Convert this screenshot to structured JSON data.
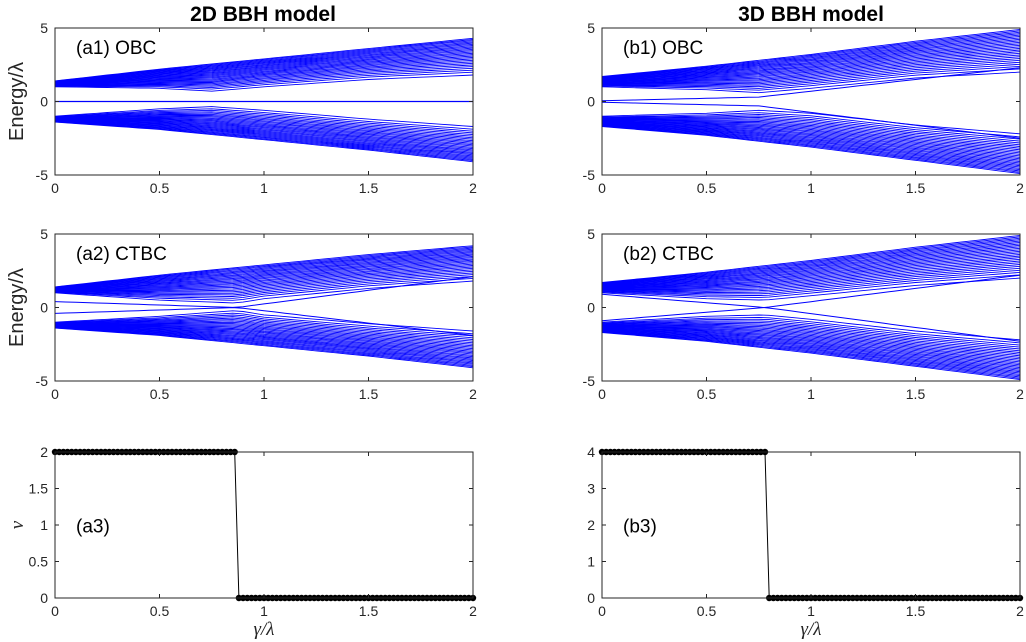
{
  "figure": {
    "column_titles": [
      "2D BBH model",
      "3D BBH model"
    ]
  },
  "chart_data": [
    {
      "id": "a1",
      "type": "line",
      "title": "(a1) OBC",
      "xlabel": "",
      "ylabel": "Energy/λ",
      "xlim": [
        0,
        2
      ],
      "ylim": [
        -5,
        5
      ],
      "xticks": [
        0,
        0.5,
        1,
        1.5,
        2
      ],
      "xtick_labels": [
        "0",
        "0.5",
        "1",
        "1.5",
        "2"
      ],
      "yticks": [
        -5,
        0,
        5
      ],
      "ytick_labels": [
        "-5",
        "0",
        "5"
      ],
      "line_color": "#0000ff",
      "bands": {
        "upper": {
          "inner_edge": [
            [
              0,
              1.0
            ],
            [
              0.5,
              0.9
            ],
            [
              0.75,
              0.7
            ],
            [
              1,
              1.0
            ],
            [
              1.5,
              1.5
            ],
            [
              2,
              1.8
            ]
          ],
          "outer_edge": [
            [
              0,
              1.4
            ],
            [
              0.5,
              2.2
            ],
            [
              1,
              2.9
            ],
            [
              1.5,
              3.6
            ],
            [
              2,
              4.3
            ]
          ]
        },
        "lower": {
          "inner_edge": [
            [
              0,
              -1.0
            ],
            [
              0.5,
              -0.5
            ],
            [
              0.75,
              -0.35
            ],
            [
              1,
              -0.6
            ],
            [
              1.5,
              -1.2
            ],
            [
              2,
              -1.7
            ]
          ],
          "outer_edge": [
            [
              0,
              -1.4
            ],
            [
              0.5,
              -1.9
            ],
            [
              1,
              -2.6
            ],
            [
              1.5,
              -3.3
            ],
            [
              2,
              -4.1
            ]
          ]
        }
      },
      "zero_modes": {
        "x": [
          0,
          2
        ],
        "y": [
          0,
          0
        ]
      }
    },
    {
      "id": "b1",
      "type": "line",
      "title": "(b1) OBC",
      "xlabel": "",
      "ylabel": "",
      "xlim": [
        0,
        2
      ],
      "ylim": [
        -5,
        5
      ],
      "xticks": [
        0,
        0.5,
        1,
        1.5,
        2
      ],
      "xtick_labels": [
        "0",
        "0.5",
        "1",
        "1.5",
        "2"
      ],
      "yticks": [
        -5,
        0,
        5
      ],
      "ytick_labels": [
        "-5",
        "0",
        "5"
      ],
      "line_color": "#0000ff",
      "bands": {
        "upper": {
          "inner_edge": [
            [
              0,
              1.0
            ],
            [
              0.5,
              0.8
            ],
            [
              0.75,
              0.6
            ],
            [
              1,
              0.9
            ],
            [
              1.5,
              1.6
            ],
            [
              2,
              2.0
            ]
          ],
          "outer_edge": [
            [
              0,
              1.7
            ],
            [
              0.5,
              2.4
            ],
            [
              1,
              3.2
            ],
            [
              1.5,
              4.1
            ],
            [
              2,
              4.9
            ]
          ]
        },
        "lower": {
          "inner_edge": [
            [
              0,
              -1.0
            ],
            [
              0.5,
              -0.8
            ],
            [
              0.75,
              -0.6
            ],
            [
              1,
              -0.8
            ],
            [
              1.5,
              -1.6
            ],
            [
              2,
              -2.2
            ]
          ],
          "outer_edge": [
            [
              0,
              -1.7
            ],
            [
              0.5,
              -2.3
            ],
            [
              1,
              -3.1
            ],
            [
              1.5,
              -4.0
            ],
            [
              2,
              -4.9
            ]
          ]
        }
      },
      "crossing_modes": [
        {
          "x": [
            0,
            0.75,
            2
          ],
          "y": [
            0.05,
            0.3,
            2.3
          ]
        },
        {
          "x": [
            0,
            0.75,
            2
          ],
          "y": [
            -0.05,
            -0.3,
            -2.5
          ]
        }
      ]
    },
    {
      "id": "a2",
      "type": "line",
      "title": "(a2) CTBC",
      "xlabel": "",
      "ylabel": "Energy/λ",
      "xlim": [
        0,
        2
      ],
      "ylim": [
        -5,
        5
      ],
      "xticks": [
        0,
        0.5,
        1,
        1.5,
        2
      ],
      "xtick_labels": [
        "0",
        "0.5",
        "1",
        "1.5",
        "2"
      ],
      "yticks": [
        -5,
        0,
        5
      ],
      "ytick_labels": [
        "-5",
        "0",
        "5"
      ],
      "line_color": "#0000ff",
      "bands": {
        "upper": {
          "inner_edge": [
            [
              0,
              1.0
            ],
            [
              0.5,
              0.5
            ],
            [
              0.87,
              0.3
            ],
            [
              1,
              0.6
            ],
            [
              1.5,
              1.3
            ],
            [
              2,
              1.8
            ]
          ],
          "outer_edge": [
            [
              0,
              1.4
            ],
            [
              0.5,
              2.2
            ],
            [
              1,
              2.9
            ],
            [
              1.5,
              3.6
            ],
            [
              2,
              4.2
            ]
          ]
        },
        "lower": {
          "inner_edge": [
            [
              0,
              -1.0
            ],
            [
              0.5,
              -0.6
            ],
            [
              0.87,
              -0.2
            ],
            [
              1,
              -0.5
            ],
            [
              1.5,
              -1.1
            ],
            [
              2,
              -1.6
            ]
          ],
          "outer_edge": [
            [
              0,
              -1.4
            ],
            [
              0.5,
              -1.9
            ],
            [
              1,
              -2.6
            ],
            [
              1.5,
              -3.3
            ],
            [
              2,
              -4.1
            ]
          ]
        }
      },
      "crossing_modes": [
        {
          "x": [
            0,
            0.87,
            2
          ],
          "y": [
            0.4,
            0,
            2.1
          ]
        },
        {
          "x": [
            0,
            0.87,
            2
          ],
          "y": [
            -0.4,
            0,
            -1.9
          ]
        }
      ]
    },
    {
      "id": "b2",
      "type": "line",
      "title": "(b2) CTBC",
      "xlabel": "",
      "ylabel": "",
      "xlim": [
        0,
        2
      ],
      "ylim": [
        -5,
        5
      ],
      "xticks": [
        0,
        0.5,
        1,
        1.5,
        2
      ],
      "xtick_labels": [
        "0",
        "0.5",
        "1",
        "1.5",
        "2"
      ],
      "yticks": [
        -5,
        0,
        5
      ],
      "ytick_labels": [
        "-5",
        "0",
        "5"
      ],
      "line_color": "#0000ff",
      "bands": {
        "upper": {
          "inner_edge": [
            [
              0,
              1.0
            ],
            [
              0.5,
              0.6
            ],
            [
              0.78,
              0.5
            ],
            [
              1,
              0.8
            ],
            [
              1.5,
              1.5
            ],
            [
              2,
              2.0
            ]
          ],
          "outer_edge": [
            [
              0,
              1.7
            ],
            [
              0.5,
              2.4
            ],
            [
              1,
              3.2
            ],
            [
              1.5,
              4.1
            ],
            [
              2,
              4.9
            ]
          ]
        },
        "lower": {
          "inner_edge": [
            [
              0,
              -1.0
            ],
            [
              0.5,
              -0.6
            ],
            [
              0.78,
              -0.5
            ],
            [
              1,
              -0.8
            ],
            [
              1.5,
              -1.6
            ],
            [
              2,
              -2.2
            ]
          ],
          "outer_edge": [
            [
              0,
              -1.7
            ],
            [
              0.5,
              -2.3
            ],
            [
              1,
              -3.1
            ],
            [
              1.5,
              -4.0
            ],
            [
              2,
              -4.9
            ]
          ]
        }
      },
      "crossing_modes": [
        {
          "x": [
            0,
            0.78,
            2
          ],
          "y": [
            -0.9,
            0,
            2.2
          ]
        },
        {
          "x": [
            0,
            0.78,
            2
          ],
          "y": [
            0.9,
            0,
            -2.3
          ]
        }
      ]
    },
    {
      "id": "a3",
      "type": "scatter",
      "title": "(a3)",
      "xlabel": "γ/λ",
      "ylabel": "ν",
      "xlim": [
        0,
        2
      ],
      "ylim": [
        0,
        2
      ],
      "xticks": [
        0,
        0.5,
        1,
        1.5,
        2
      ],
      "xtick_labels": [
        "0",
        "0.5",
        "1",
        "1.5",
        "2"
      ],
      "yticks": [
        0,
        0.5,
        1,
        1.5,
        2
      ],
      "ytick_labels": [
        "0",
        "0.5",
        "1",
        "1.5",
        "2"
      ],
      "marker_color": "#000000",
      "step": {
        "transition": 0.87,
        "high": 2,
        "low": 0,
        "x_step": 0.02
      }
    },
    {
      "id": "b3",
      "type": "scatter",
      "title": "(b3)",
      "xlabel": "γ/λ",
      "ylabel": "",
      "xlim": [
        0,
        2
      ],
      "ylim": [
        0,
        4
      ],
      "xticks": [
        0,
        0.5,
        1,
        1.5,
        2
      ],
      "xtick_labels": [
        "0",
        "0.5",
        "1",
        "1.5",
        "2"
      ],
      "yticks": [
        0,
        1,
        2,
        3,
        4
      ],
      "ytick_labels": [
        "0",
        "1",
        "2",
        "3",
        "4"
      ],
      "marker_color": "#000000",
      "step": {
        "transition": 0.78,
        "high": 4,
        "low": 0,
        "x_step": 0.02
      }
    }
  ]
}
